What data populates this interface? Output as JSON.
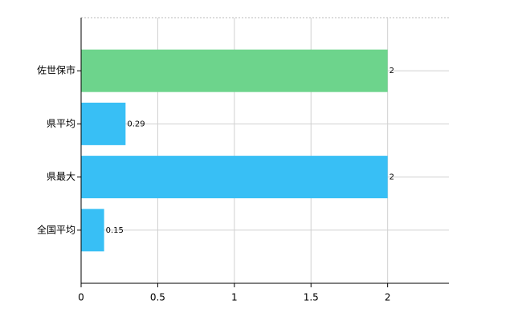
{
  "chart_data": {
    "type": "bar",
    "orientation": "horizontal",
    "categories": [
      "佐世保市",
      "県平均",
      "県最大",
      "全国平均"
    ],
    "values": [
      2,
      0.29,
      2,
      0.15
    ],
    "colors": [
      "#6dd48c",
      "#38bff5",
      "#38bff5",
      "#38bff5"
    ],
    "xlim": [
      0,
      2.4
    ],
    "xticks": [
      0,
      0.5,
      1,
      1.5,
      2
    ],
    "grid": true
  }
}
